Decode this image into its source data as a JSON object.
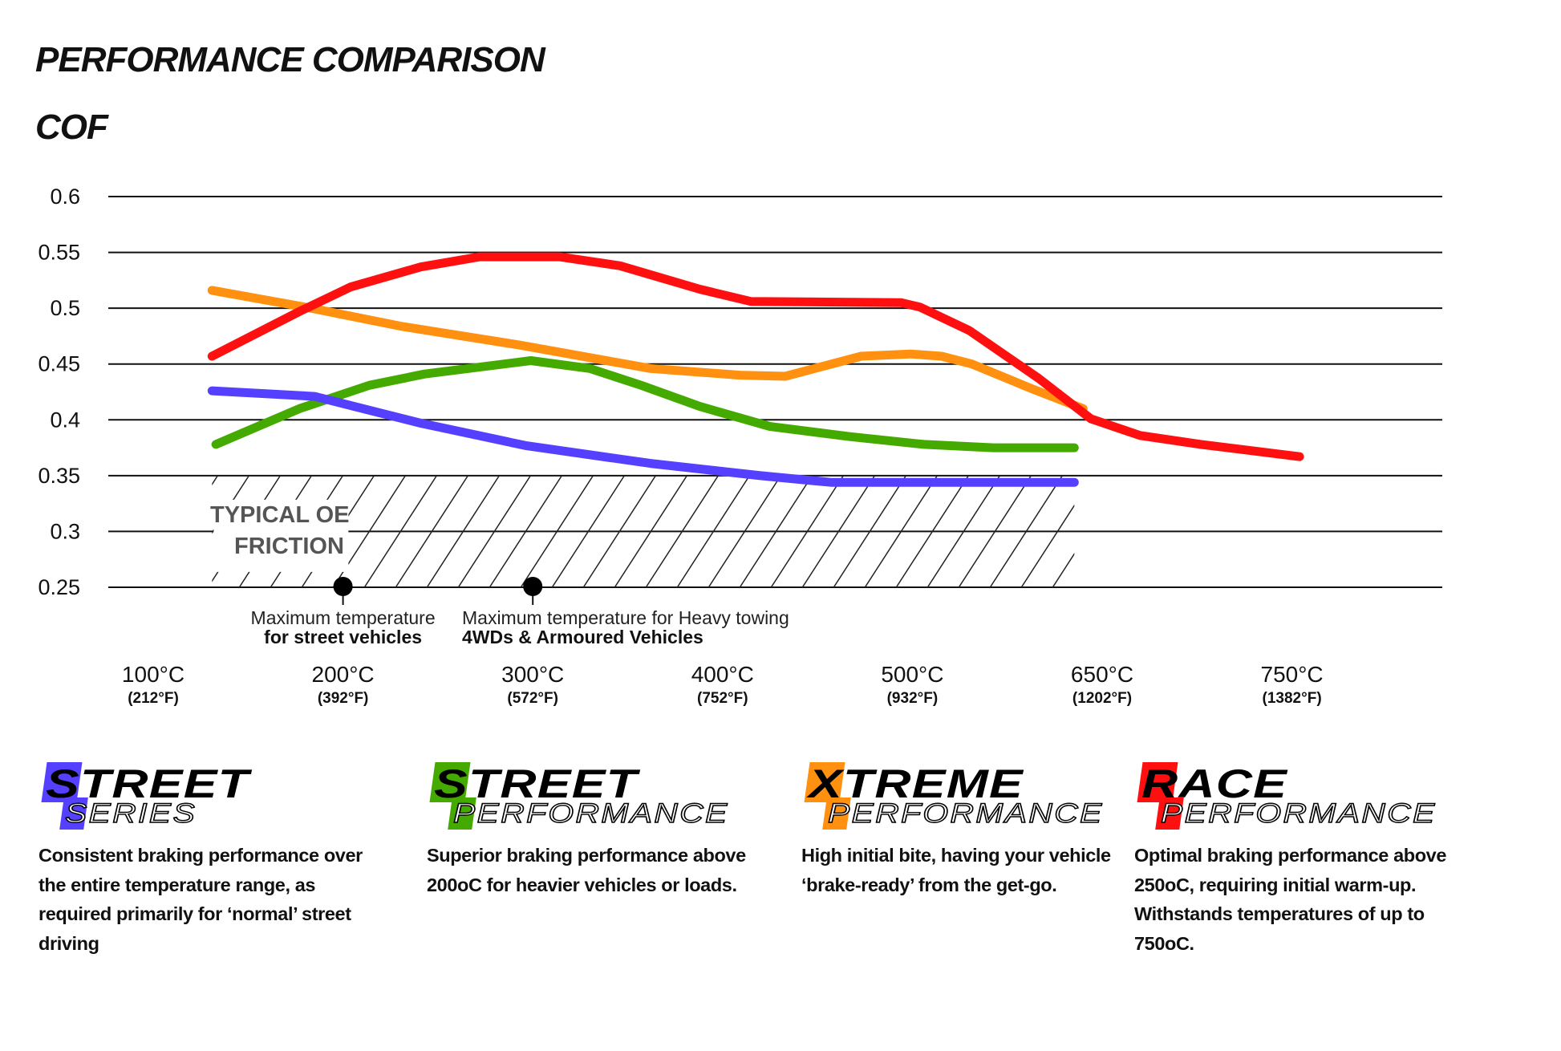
{
  "header": {
    "title": "PERFORMANCE COMPARISON",
    "subtitle": "COF"
  },
  "chart_data": {
    "type": "line",
    "title": "PERFORMANCE COMPARISON",
    "ylabel": "COF",
    "ylim": [
      0.25,
      0.6
    ],
    "yticks": [
      "0.6",
      "0.55",
      "0.5",
      "0.45",
      "0.4",
      "0.35",
      "0.3",
      "0.25"
    ],
    "ytick_values": [
      0.6,
      0.55,
      0.5,
      0.45,
      0.4,
      0.35,
      0.3,
      0.25
    ],
    "xticks": [
      {
        "c": "100°C",
        "f": "(212°F)",
        "temp": 100
      },
      {
        "c": "200°C",
        "f": "(392°F)",
        "temp": 200
      },
      {
        "c": "300°C",
        "f": "(572°F)",
        "temp": 300
      },
      {
        "c": "400°C",
        "f": "(752°F)",
        "temp": 400
      },
      {
        "c": "500°C",
        "f": "(932°F)",
        "temp": 500
      },
      {
        "c": "650°C",
        "f": "(1202°F)",
        "temp": 650
      },
      {
        "c": "750°C",
        "f": "(1382°F)",
        "temp": 750
      }
    ],
    "grid": true,
    "series": [
      {
        "color": "#ff9010",
        "x": [
          131,
          183,
          230,
          293,
          362,
          409,
          433,
          473,
          499,
          523,
          547,
          594,
          635
        ],
        "y": [
          0.516,
          0.5,
          0.484,
          0.467,
          0.446,
          0.44,
          0.439,
          0.457,
          0.459,
          0.457,
          0.45,
          0.428,
          0.41
        ]
      },
      {
        "color": "#44aa00",
        "x": [
          133,
          177,
          214,
          243,
          299,
          330,
          357,
          388,
          425,
          467,
          509,
          564,
          628
        ],
        "y": [
          0.378,
          0.41,
          0.431,
          0.441,
          0.453,
          0.446,
          0.431,
          0.412,
          0.394,
          0.385,
          0.378,
          0.375,
          0.375
        ]
      },
      {
        "color": "#5540ff",
        "x": [
          131,
          185,
          241,
          296,
          362,
          420,
          457,
          628
        ],
        "y": [
          0.426,
          0.421,
          0.397,
          0.377,
          0.361,
          0.35,
          0.344,
          0.344
        ]
      },
      {
        "color": "#ff1010",
        "x": [
          131,
          177,
          204,
          241,
          272,
          314,
          346,
          388,
          415,
          494,
          506,
          545,
          600,
          641,
          670,
          702,
          754
        ],
        "y": [
          0.457,
          0.497,
          0.519,
          0.537,
          0.546,
          0.546,
          0.538,
          0.517,
          0.506,
          0.505,
          0.501,
          0.48,
          0.437,
          0.401,
          0.386,
          0.378,
          0.367
        ]
      }
    ],
    "shaded_region": {
      "label_line1": "TYPICAL OE",
      "label_line2": "FRICTION",
      "x": [
        131,
        628
      ],
      "y": [
        0.25,
        0.35
      ]
    },
    "annotations": [
      {
        "temp": 200,
        "line1": "Maximum temperature",
        "line2": "for street vehicles"
      },
      {
        "temp": 300,
        "line1": "Maximum temperature for Heavy towing",
        "line2": "4WDs & Armoured Vehicles"
      }
    ]
  },
  "products": [
    {
      "first": "S",
      "rest": "TREET",
      "sub_first": "S",
      "sub_rest": "ERIES",
      "color": "#5540ff",
      "desc": "Consistent braking performance over the entire temperature range, as required primarily for ‘normal’ street driving"
    },
    {
      "first": "S",
      "rest": "TREET",
      "sub_first": "P",
      "sub_rest": "ERFORMANCE",
      "color": "#44aa00",
      "desc": "Superior braking performance above 200oC for heavier vehicles or loads."
    },
    {
      "first": "X",
      "rest": "TREME",
      "sub_first": "P",
      "sub_rest": "ERFORMANCE",
      "color": "#ff9010",
      "desc": "High initial bite, having your vehicle ‘brake-ready’ from the get-go."
    },
    {
      "first": "R",
      "rest": "ACE",
      "sub_first": "P",
      "sub_rest": "ERFORMANCE",
      "color": "#ff1010",
      "desc": "Optimal braking performance above 250oC, requiring initial warm-up. Withstands temperatures of up to 750oC."
    }
  ]
}
